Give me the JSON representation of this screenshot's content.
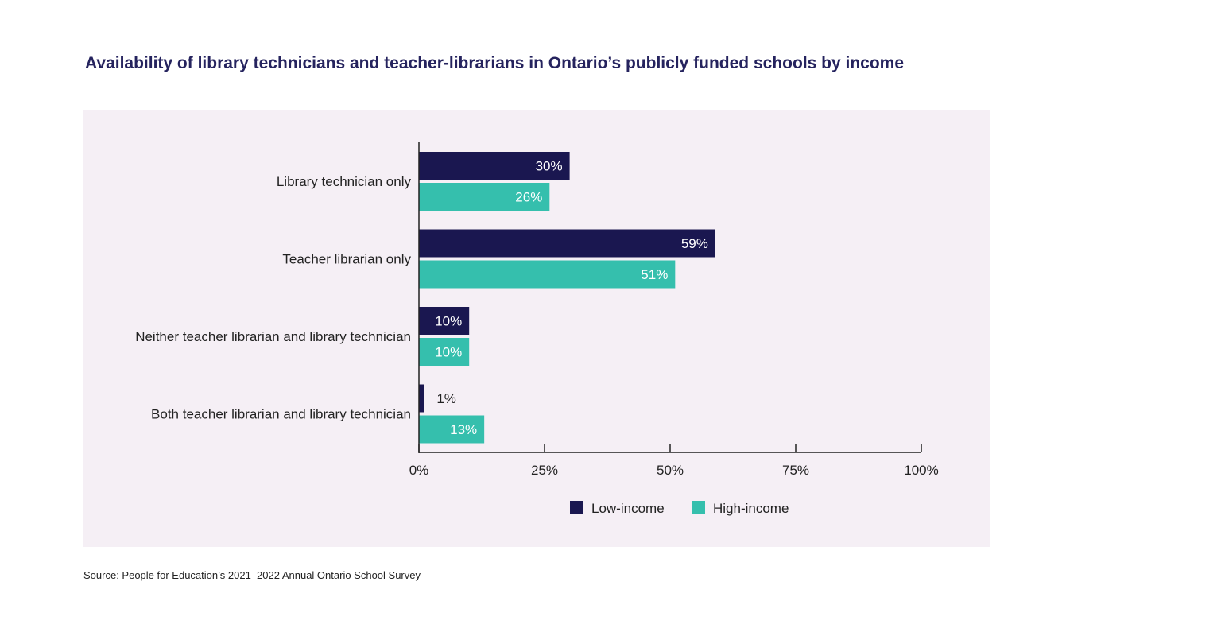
{
  "chart_data": {
    "type": "bar",
    "orientation": "horizontal",
    "title": "Availability of library technicians and teacher-librarians in Ontario’s publicly funded schools by income",
    "categories": [
      "Library technician only",
      "Teacher librarian only",
      "Neither teacher librarian and library technician",
      "Both teacher librarian and library technician"
    ],
    "series": [
      {
        "name": "Low-income",
        "color": "#1a1750",
        "values": [
          30,
          59,
          10,
          1
        ]
      },
      {
        "name": "High-income",
        "color": "#35bfad",
        "values": [
          26,
          51,
          10,
          13
        ]
      }
    ],
    "data_labels": [
      [
        "30%",
        "59%",
        "10%",
        "1%"
      ],
      [
        "26%",
        "51%",
        "10%",
        "13%"
      ]
    ],
    "xlim": [
      0,
      100
    ],
    "xticks": [
      0,
      25,
      50,
      75,
      100
    ],
    "xtick_labels": [
      "0%",
      "25%",
      "50%",
      "75%",
      "100%"
    ],
    "xlabel": "",
    "ylabel": "",
    "grid": false,
    "legend_position": "bottom",
    "background": "#f5eff5"
  },
  "source": "Source: People for Education’s 2021–2022 Annual Ontario School Survey"
}
